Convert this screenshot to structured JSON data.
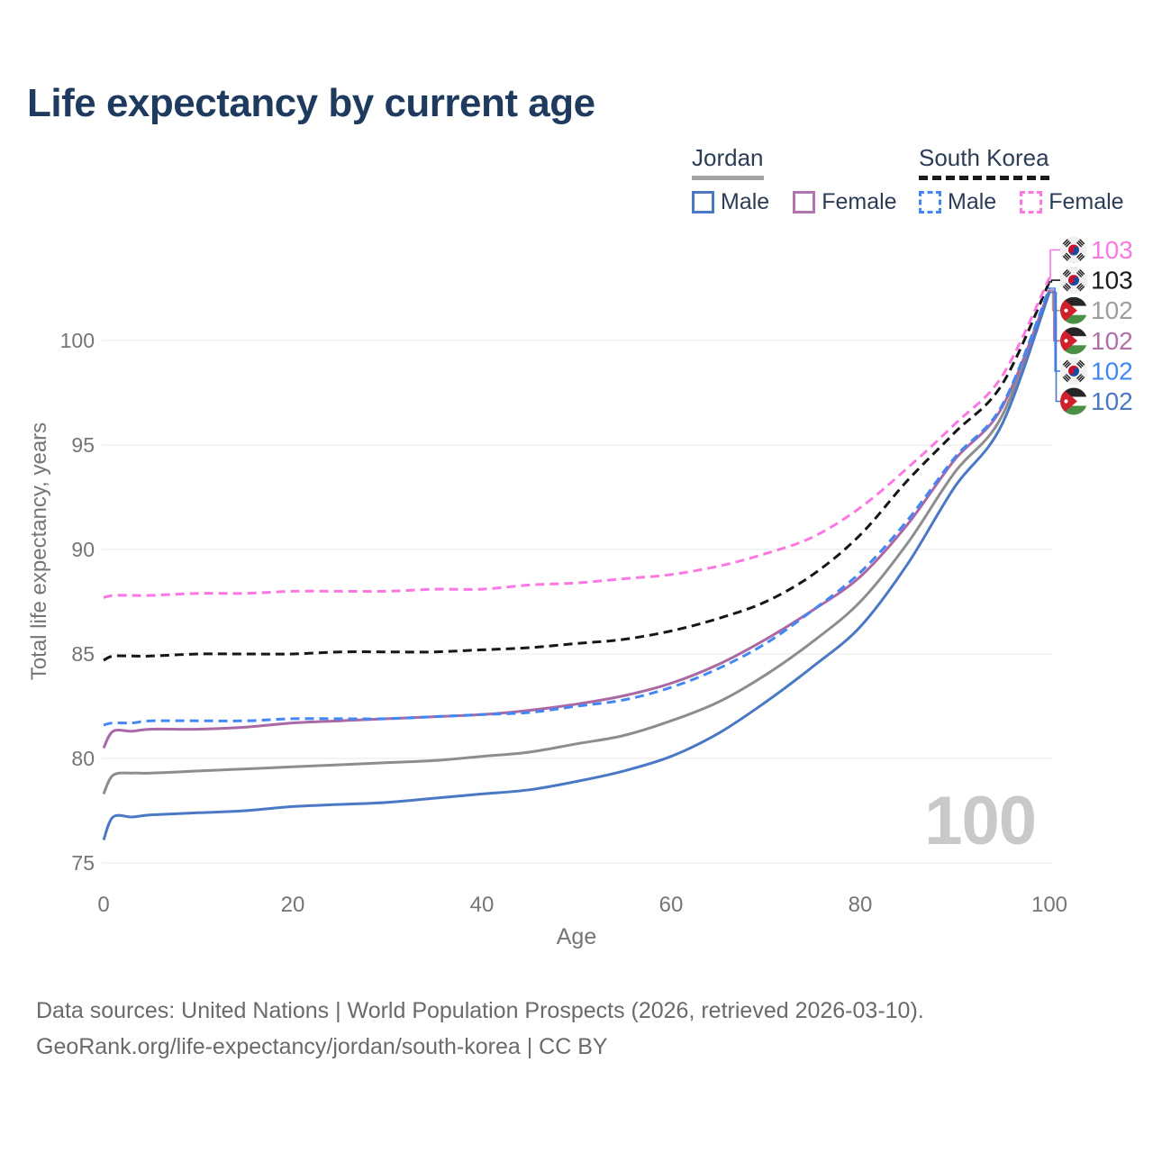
{
  "title": "Life expectancy by current age",
  "legend": {
    "groups": [
      {
        "label": "Jordan",
        "line_style": "solid",
        "underline_color": "#a3a3a3",
        "items": [
          {
            "label": "Male",
            "color": "#4a78c4"
          },
          {
            "label": "Female",
            "color": "#b273ae"
          }
        ]
      },
      {
        "label": "South Korea",
        "line_style": "dashed",
        "underline_color": "#1a1a1a",
        "items": [
          {
            "label": "Male",
            "color": "#4287f5"
          },
          {
            "label": "Female",
            "color": "#fb78e2"
          }
        ]
      }
    ]
  },
  "watermark_age": "100",
  "chart_data": {
    "type": "line",
    "title": "Life expectancy by current age",
    "xlabel": "Age",
    "ylabel": "Total life expectancy, years",
    "xlim": [
      0,
      100
    ],
    "ylim": [
      75,
      103.8
    ],
    "xticks": [
      0,
      20,
      40,
      60,
      80,
      100
    ],
    "yticks": [
      75,
      80,
      85,
      90,
      95,
      100
    ],
    "grid": true,
    "legend_position": "top-right",
    "x": [
      0,
      1,
      3,
      5,
      10,
      15,
      20,
      25,
      30,
      35,
      40,
      45,
      50,
      55,
      60,
      65,
      70,
      75,
      80,
      85,
      90,
      95,
      100
    ],
    "series": [
      {
        "id": "sk_female",
        "name": "South Korea Female",
        "country": "South Korea",
        "sex": "Female",
        "color": "#fb78e2",
        "label_color": "#fb78e2",
        "dash": true,
        "flag": "kr",
        "end_label": "103",
        "values": [
          87.7,
          87.8,
          87.8,
          87.8,
          87.9,
          87.9,
          88.0,
          88.0,
          88.0,
          88.1,
          88.1,
          88.3,
          88.4,
          88.6,
          88.8,
          89.2,
          89.8,
          90.6,
          92.0,
          93.9,
          96.0,
          98.3,
          103.0
        ]
      },
      {
        "id": "sk_total",
        "name": "South Korea Both sexes",
        "country": "South Korea",
        "sex": "Both",
        "color": "#161616",
        "label_color": "#1a1a1a",
        "dash": true,
        "flag": "kr",
        "end_label": "103",
        "values": [
          84.7,
          84.9,
          84.9,
          84.9,
          85.0,
          85.0,
          85.0,
          85.1,
          85.1,
          85.1,
          85.2,
          85.3,
          85.5,
          85.7,
          86.1,
          86.7,
          87.5,
          88.8,
          90.7,
          93.3,
          95.6,
          97.9,
          102.8
        ]
      },
      {
        "id": "sk_male",
        "name": "South Korea Male",
        "country": "South Korea",
        "sex": "Male",
        "color": "#4287f5",
        "label_color": "#4287f5",
        "dash": true,
        "flag": "kr",
        "end_label": "102",
        "values": [
          81.6,
          81.7,
          81.7,
          81.8,
          81.8,
          81.8,
          81.9,
          81.9,
          81.9,
          82.0,
          82.1,
          82.2,
          82.5,
          82.8,
          83.4,
          84.3,
          85.5,
          87.1,
          88.9,
          91.4,
          94.4,
          96.9,
          102.5
        ]
      },
      {
        "id": "jordan_female",
        "name": "Jordan Female",
        "country": "Jordan",
        "sex": "Female",
        "color": "#aa68a4",
        "label_color": "#b06fa8",
        "dash": false,
        "flag": "jo",
        "end_label": "102",
        "values": [
          80.5,
          81.3,
          81.3,
          81.4,
          81.4,
          81.5,
          81.7,
          81.8,
          81.9,
          82.0,
          82.1,
          82.3,
          82.6,
          83.0,
          83.6,
          84.5,
          85.7,
          87.1,
          88.7,
          91.2,
          94.3,
          96.8,
          102.4
        ]
      },
      {
        "id": "jordan_total",
        "name": "Jordan Both sexes",
        "country": "Jordan",
        "sex": "Both",
        "color": "#8d8d8d",
        "label_color": "#9e9e9e",
        "dash": false,
        "flag": "jo",
        "end_label": "102",
        "values": [
          78.3,
          79.2,
          79.3,
          79.3,
          79.4,
          79.5,
          79.6,
          79.7,
          79.8,
          79.9,
          80.1,
          80.3,
          80.7,
          81.1,
          81.8,
          82.7,
          84.0,
          85.6,
          87.5,
          90.3,
          93.7,
          96.4,
          102.4
        ]
      },
      {
        "id": "jordan_male",
        "name": "Jordan Male",
        "country": "Jordan",
        "sex": "Male",
        "color": "#4a78c4",
        "label_color": "#4a78c4",
        "dash": false,
        "flag": "jo",
        "end_label": "102",
        "values": [
          76.1,
          77.2,
          77.2,
          77.3,
          77.4,
          77.5,
          77.7,
          77.8,
          77.9,
          78.1,
          78.3,
          78.5,
          78.9,
          79.4,
          80.1,
          81.2,
          82.7,
          84.4,
          86.3,
          89.3,
          93.0,
          96.0,
          102.3
        ]
      }
    ],
    "end_label_order": [
      "sk_female",
      "sk_total",
      "jordan_total",
      "jordan_female",
      "sk_male",
      "jordan_male"
    ]
  },
  "footer": {
    "line1": "Data sources: United Nations | World Population Prospects (2026, retrieved 2026-03-10).",
    "line2": "GeoRank.org/life-expectancy/jordan/south-korea | CC BY"
  }
}
